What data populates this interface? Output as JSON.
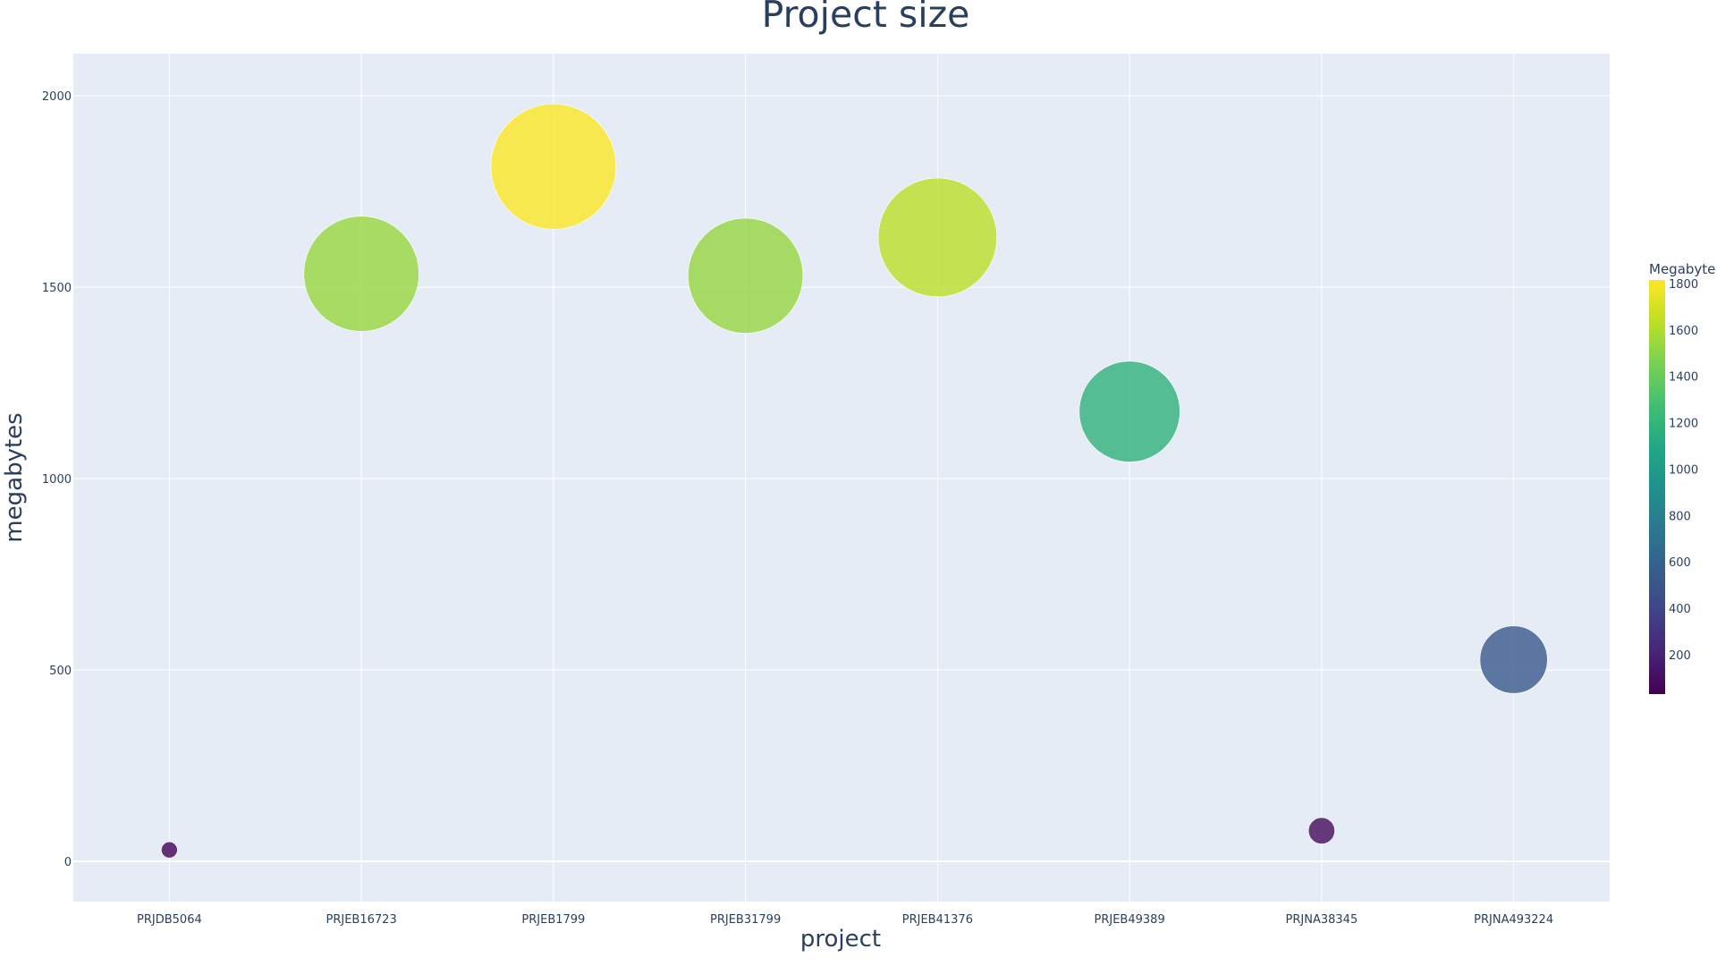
{
  "chart_data": {
    "type": "scatter",
    "title": "Project size",
    "xlabel": "project",
    "ylabel": "megabytes",
    "categories": [
      "PRJDB5064",
      "PRJEB16723",
      "PRJEB1799",
      "PRJEB31799",
      "PRJEB41376",
      "PRJEB49389",
      "PRJNA38345",
      "PRJNA493224"
    ],
    "values": [
      30,
      1535,
      1815,
      1530,
      1630,
      1175,
      80,
      527
    ],
    "ylim": [
      -105,
      2110
    ],
    "yticks": [
      0,
      500,
      1000,
      1500,
      2000
    ],
    "grid": true,
    "marker_size_encodes": "megabytes",
    "colorscale": "Viridis",
    "colorbar": {
      "title": "Megabyte",
      "range": [
        30,
        1815
      ],
      "ticks": [
        200,
        400,
        600,
        800,
        1000,
        1200,
        1400,
        1600,
        1800
      ],
      "placement": "right"
    },
    "colors": {
      "plot_background": "#e5ecf6",
      "grid": "#ffffff",
      "text": "#2a3f5f"
    }
  }
}
